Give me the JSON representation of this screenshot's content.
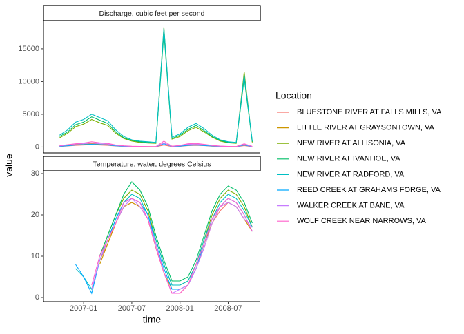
{
  "chart_data": {
    "type": "line",
    "x_label": "time",
    "y_label": "value",
    "legend_title": "Location",
    "x": [
      "2006-10",
      "2006-11",
      "2006-12",
      "2007-01",
      "2007-02",
      "2007-03",
      "2007-04",
      "2007-05",
      "2007-06",
      "2007-07",
      "2007-08",
      "2007-09",
      "2007-10",
      "2007-11",
      "2007-12",
      "2008-01",
      "2008-02",
      "2008-03",
      "2008-04",
      "2008-05",
      "2008-06",
      "2008-07",
      "2008-08",
      "2008-09",
      "2008-10"
    ],
    "xlim": [
      "2006-08",
      "2008-11"
    ],
    "xticks": [
      "2007-01",
      "2007-07",
      "2008-01",
      "2008-07"
    ],
    "series": [
      {
        "name": "BLUESTONE RIVER AT FALLS MILLS, VA",
        "color": "#f8766d"
      },
      {
        "name": "LITTLE RIVER AT GRAYSONTOWN, VA",
        "color": "#cd9600"
      },
      {
        "name": "NEW RIVER AT ALLISONIA, VA",
        "color": "#7cae00"
      },
      {
        "name": "NEW RIVER AT IVANHOE, VA",
        "color": "#00be67"
      },
      {
        "name": "NEW RIVER AT RADFORD, VA",
        "color": "#00bfc4"
      },
      {
        "name": "REED CREEK AT GRAHAMS FORGE, VA",
        "color": "#00a9ff"
      },
      {
        "name": "WALKER CREEK AT BANE, VA",
        "color": "#c77cff"
      },
      {
        "name": "WOLF CREEK NEAR NARROWS, VA",
        "color": "#ff61cc"
      }
    ],
    "panels": [
      {
        "title": "Discharge, cubic feet per second",
        "ylim": [
          -900,
          19200
        ],
        "yticks": [
          0,
          5000,
          10000,
          15000
        ],
        "values": [
          [
            80,
            150,
            250,
            300,
            350,
            300,
            250,
            150,
            90,
            60,
            50,
            40,
            40,
            300,
            70,
            100,
            200,
            250,
            200,
            120,
            70,
            50,
            40,
            200,
            50
          ],
          [
            150,
            250,
            350,
            400,
            500,
            450,
            400,
            250,
            150,
            100,
            80,
            70,
            60,
            600,
            120,
            180,
            300,
            350,
            280,
            180,
            110,
            80,
            70,
            400,
            90
          ],
          [
            1400,
            2100,
            3100,
            3500,
            4200,
            3700,
            3300,
            2100,
            1300,
            900,
            700,
            600,
            550,
            18300,
            1200,
            1600,
            2500,
            3000,
            2300,
            1500,
            900,
            650,
            550,
            11500,
            700
          ],
          [
            1600,
            2300,
            3400,
            3800,
            4600,
            4100,
            3600,
            2300,
            1400,
            1000,
            800,
            700,
            600,
            17500,
            1300,
            1800,
            2700,
            3300,
            2500,
            1600,
            1000,
            700,
            600,
            10500,
            800
          ],
          [
            1800,
            2600,
            3800,
            4200,
            5000,
            4500,
            4000,
            2600,
            1600,
            1100,
            900,
            800,
            700,
            18200,
            1500,
            2000,
            3000,
            3600,
            2800,
            1800,
            1100,
            800,
            700,
            11000,
            900
          ],
          [
            100,
            180,
            300,
            350,
            400,
            350,
            300,
            180,
            110,
            70,
            60,
            50,
            50,
            500,
            90,
            130,
            250,
            300,
            230,
            150,
            90,
            60,
            50,
            300,
            60
          ],
          [
            150,
            300,
            450,
            500,
            600,
            500,
            450,
            250,
            150,
            100,
            80,
            60,
            60,
            600,
            100,
            200,
            400,
            450,
            350,
            200,
            120,
            80,
            60,
            400,
            80
          ],
          [
            200,
            350,
            500,
            600,
            800,
            650,
            550,
            300,
            180,
            120,
            90,
            70,
            70,
            900,
            120,
            250,
            500,
            550,
            400,
            250,
            140,
            90,
            70,
            500,
            100
          ]
        ]
      },
      {
        "title": "Temperature, water, degrees Celsius",
        "ylim": [
          -1,
          30.5
        ],
        "yticks": [
          0,
          10,
          20,
          30
        ],
        "values": [
          [
            null,
            null,
            null,
            null,
            2,
            9,
            13,
            18,
            22,
            23,
            22,
            19,
            12,
            6,
            1,
            1,
            3,
            7,
            12,
            18,
            21,
            23,
            22,
            19,
            16
          ],
          [
            null,
            null,
            null,
            null,
            null,
            8,
            13,
            18,
            22,
            23,
            22,
            19,
            12,
            6,
            2,
            2,
            3,
            7,
            13,
            18,
            22,
            23,
            22,
            19,
            16
          ],
          [
            null,
            null,
            null,
            null,
            null,
            10,
            15,
            20,
            24,
            26,
            25,
            21,
            14,
            8,
            3,
            3,
            4,
            8,
            14,
            20,
            24,
            26,
            25,
            22,
            17
          ],
          [
            null,
            null,
            null,
            null,
            null,
            10,
            15,
            20,
            25,
            28,
            26,
            22,
            15,
            9,
            4,
            4,
            5,
            9,
            15,
            21,
            25,
            27,
            26,
            23,
            18
          ],
          [
            null,
            null,
            7,
            5,
            2,
            9,
            14,
            19,
            23,
            25,
            24,
            20,
            14,
            8,
            3,
            3,
            4,
            8,
            14,
            19,
            23,
            25,
            24,
            21,
            17
          ],
          [
            null,
            null,
            8,
            5,
            1,
            9,
            14,
            19,
            23,
            24,
            23,
            20,
            13,
            7,
            2,
            2,
            3,
            7,
            13,
            19,
            22,
            24,
            23,
            20,
            16
          ],
          [
            null,
            null,
            null,
            null,
            2,
            9,
            14,
            18,
            22,
            24,
            22,
            19,
            13,
            6,
            1,
            2,
            3,
            7,
            12,
            18,
            22,
            23,
            22,
            19,
            17
          ],
          [
            null,
            null,
            null,
            null,
            3,
            10,
            14,
            18,
            23,
            24,
            23,
            19,
            12,
            6,
            1,
            1,
            3,
            8,
            13,
            19,
            22,
            24,
            23,
            20,
            16
          ]
        ]
      }
    ]
  }
}
